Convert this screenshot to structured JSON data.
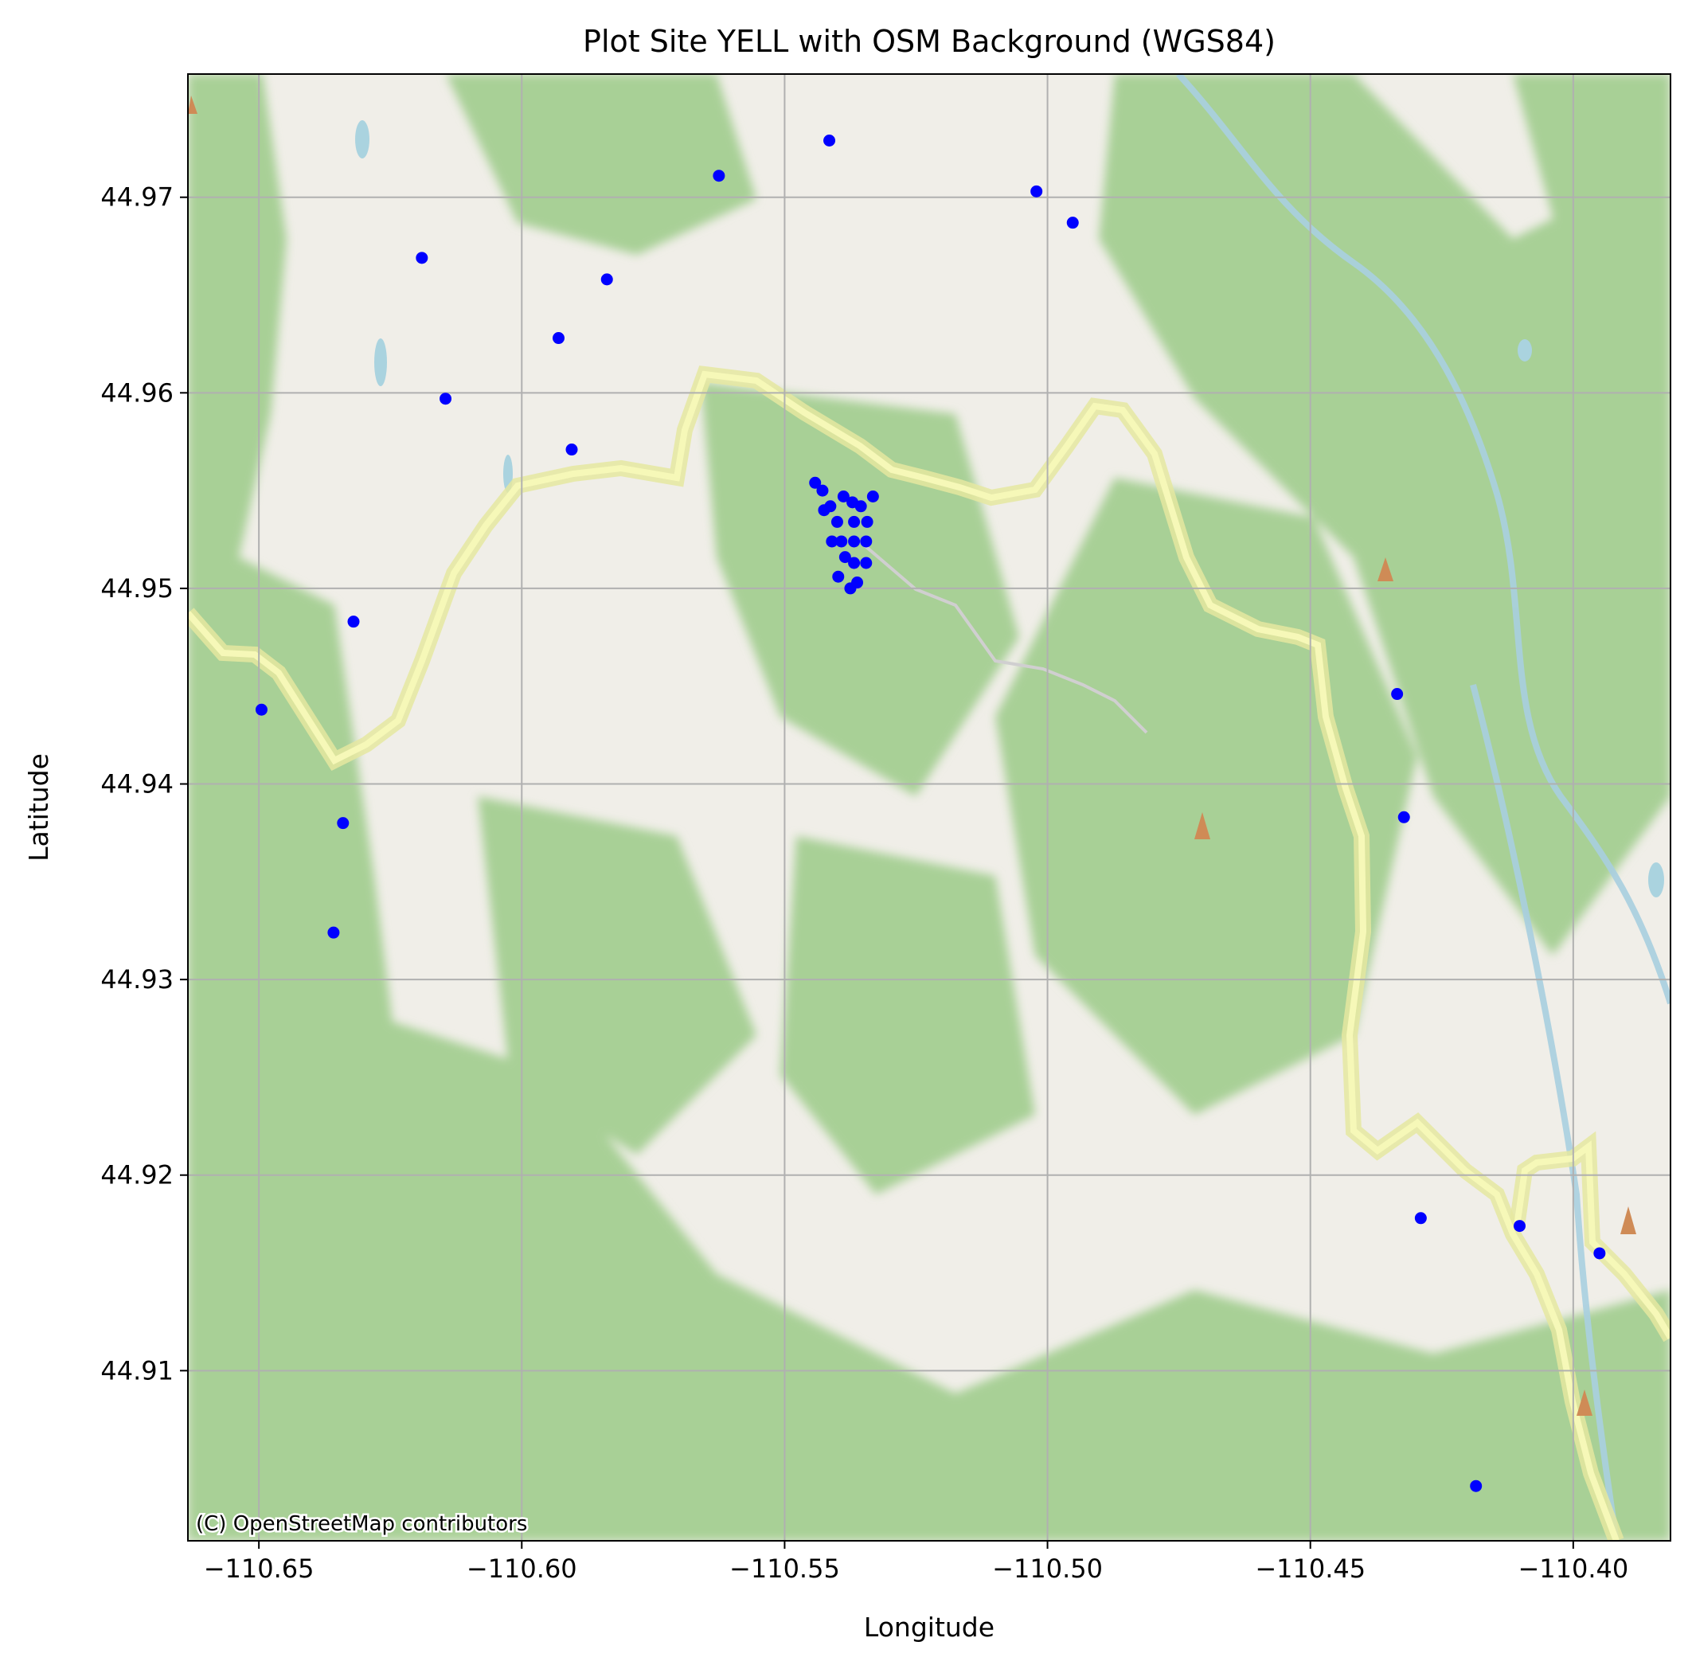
{
  "chart_data": {
    "type": "scatter",
    "title": "Plot Site YELL with OSM Background (WGS84)",
    "xlabel": "Longitude",
    "ylabel": "Latitude",
    "xlim": [
      -110.6635,
      -110.3815
    ],
    "ylim": [
      44.9013,
      44.9763
    ],
    "xticks": [
      -110.65,
      -110.6,
      -110.55,
      -110.5,
      -110.45,
      -110.4
    ],
    "xtick_labels": [
      "−110.65",
      "−110.60",
      "−110.55",
      "−110.50",
      "−110.45",
      "−110.40"
    ],
    "yticks": [
      44.91,
      44.92,
      44.93,
      44.94,
      44.95,
      44.96,
      44.97
    ],
    "ytick_labels": [
      "44.91",
      "44.92",
      "44.93",
      "44.94",
      "44.95",
      "44.96",
      "44.97"
    ],
    "grid": true,
    "marker_color": "#0000ff",
    "basemap": "OpenStreetMap",
    "attribution": "(C) OpenStreetMap contributors",
    "points": [
      {
        "x": -110.5415,
        "y": 44.9729
      },
      {
        "x": -110.5625,
        "y": 44.9711
      },
      {
        "x": -110.5021,
        "y": 44.9703
      },
      {
        "x": -110.4952,
        "y": 44.9687
      },
      {
        "x": -110.619,
        "y": 44.9669
      },
      {
        "x": -110.5838,
        "y": 44.9658
      },
      {
        "x": -110.593,
        "y": 44.9628
      },
      {
        "x": -110.6145,
        "y": 44.9597
      },
      {
        "x": -110.5905,
        "y": 44.9571
      },
      {
        "x": -110.632,
        "y": 44.9483
      },
      {
        "x": -110.6495,
        "y": 44.9438
      },
      {
        "x": -110.634,
        "y": 44.938
      },
      {
        "x": -110.6358,
        "y": 44.9324
      },
      {
        "x": -110.4335,
        "y": 44.9446
      },
      {
        "x": -110.4322,
        "y": 44.9383
      },
      {
        "x": -110.429,
        "y": 44.9178
      },
      {
        "x": -110.4102,
        "y": 44.9174
      },
      {
        "x": -110.395,
        "y": 44.916
      },
      {
        "x": -110.4185,
        "y": 44.9041
      },
      {
        "x": -110.5442,
        "y": 44.9554
      },
      {
        "x": -110.5428,
        "y": 44.955
      },
      {
        "x": -110.5388,
        "y": 44.9547
      },
      {
        "x": -110.5371,
        "y": 44.9544
      },
      {
        "x": -110.5355,
        "y": 44.9542
      },
      {
        "x": -110.5332,
        "y": 44.9547
      },
      {
        "x": -110.5413,
        "y": 44.9542
      },
      {
        "x": -110.5425,
        "y": 44.954
      },
      {
        "x": -110.54,
        "y": 44.9534
      },
      {
        "x": -110.5368,
        "y": 44.9534
      },
      {
        "x": -110.5343,
        "y": 44.9534
      },
      {
        "x": -110.541,
        "y": 44.9524
      },
      {
        "x": -110.5392,
        "y": 44.9524
      },
      {
        "x": -110.5368,
        "y": 44.9524
      },
      {
        "x": -110.5345,
        "y": 44.9524
      },
      {
        "x": -110.5385,
        "y": 44.9516
      },
      {
        "x": -110.5368,
        "y": 44.9513
      },
      {
        "x": -110.5345,
        "y": 44.9513
      },
      {
        "x": -110.5398,
        "y": 44.9506
      },
      {
        "x": -110.5362,
        "y": 44.9503
      },
      {
        "x": -110.5375,
        "y": 44.95
      }
    ]
  }
}
